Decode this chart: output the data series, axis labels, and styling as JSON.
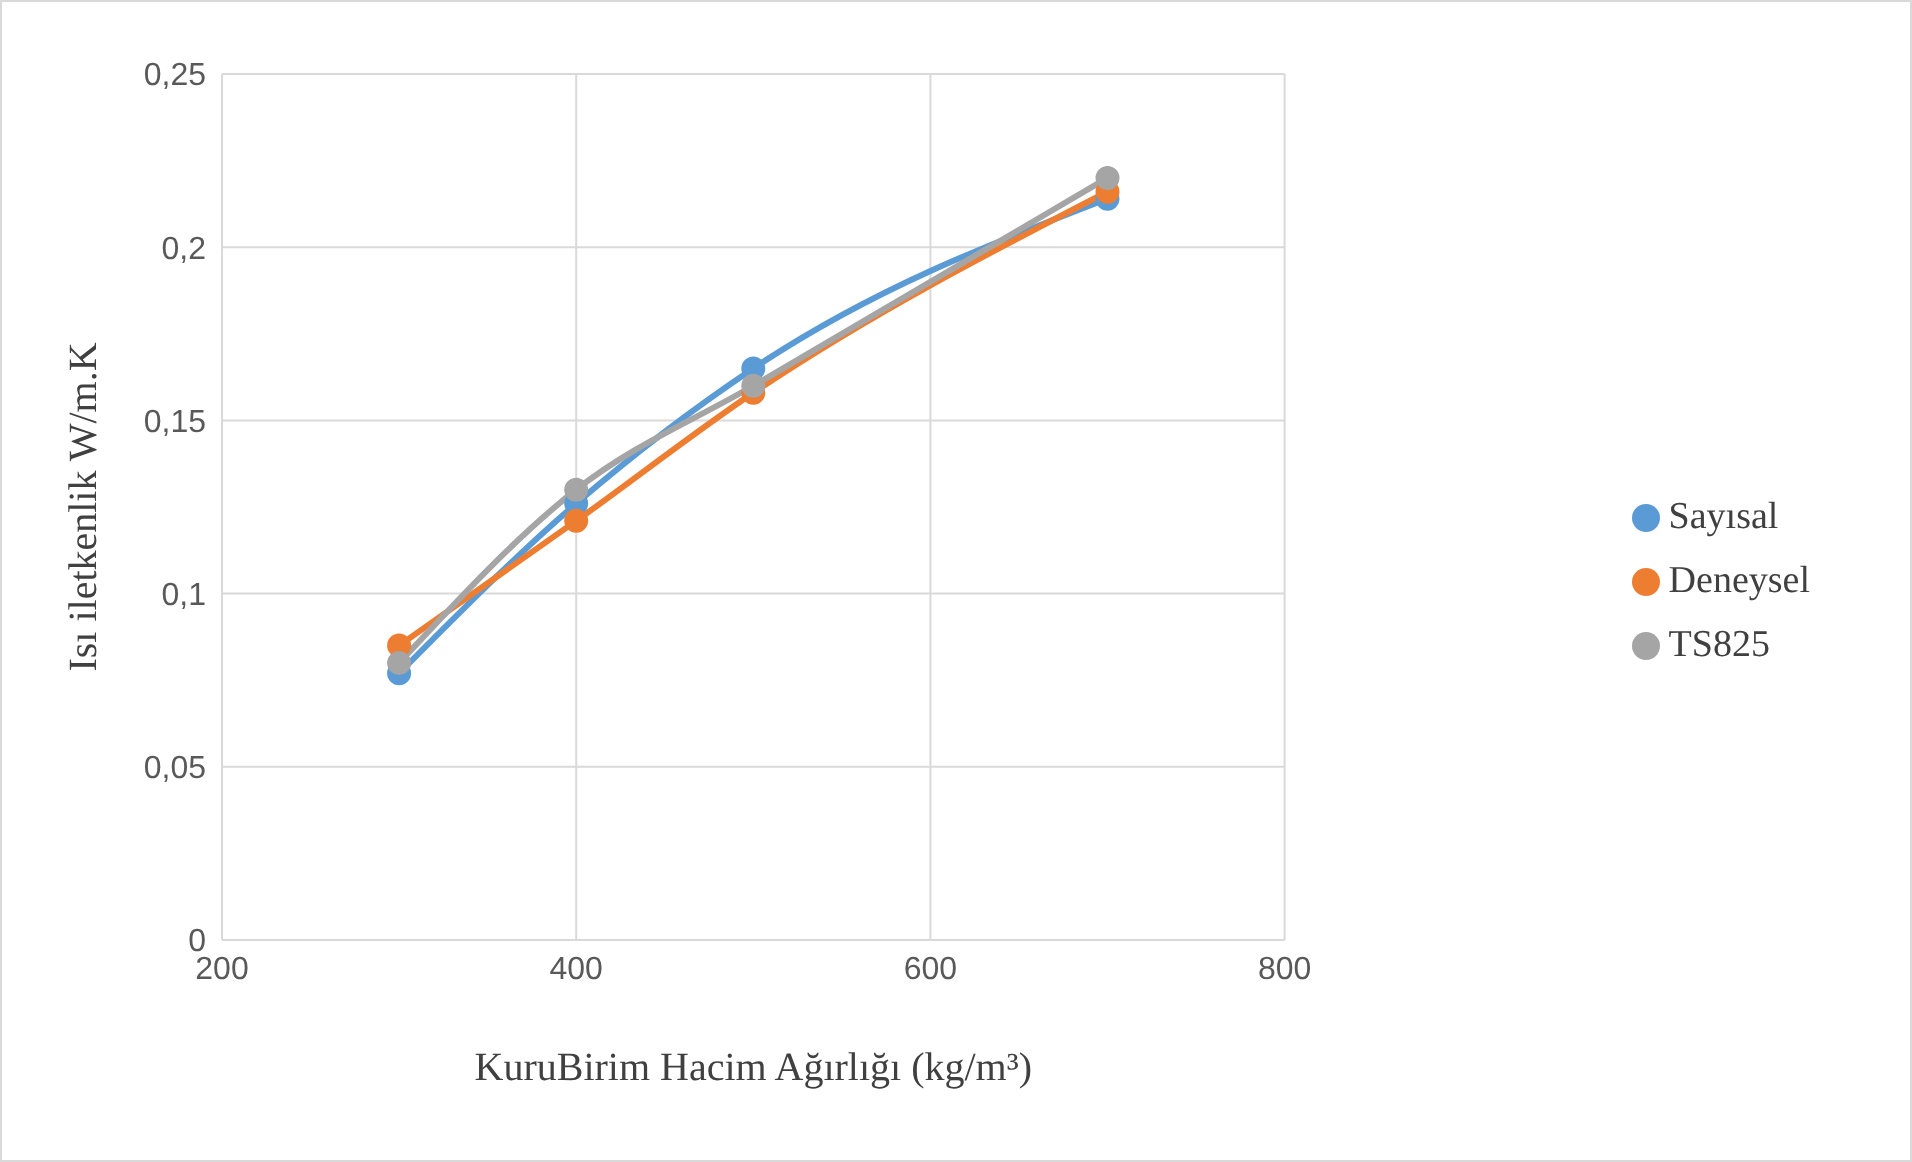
{
  "chart_data": {
    "type": "line",
    "xlabel": "KuruBirim Hacim Ağırlığı (kg/m³)",
    "ylabel": "Isı iletkenlik W/m.K",
    "x": [
      300,
      400,
      500,
      700
    ],
    "series": [
      {
        "name": "Sayısal",
        "color": "#5b9bd5",
        "values": [
          0.077,
          0.126,
          0.165,
          0.214
        ]
      },
      {
        "name": "Deneysel",
        "color": "#ed7d31",
        "values": [
          0.085,
          0.121,
          0.158,
          0.216
        ]
      },
      {
        "name": "TS825",
        "color": "#a5a5a5",
        "values": [
          0.08,
          0.13,
          0.16,
          0.22
        ]
      }
    ],
    "xlim": [
      200,
      800
    ],
    "xticks": [
      200,
      400,
      600,
      800
    ],
    "ylim": [
      0,
      0.25
    ],
    "yticks": [
      0,
      {
        "value": 0.05,
        "label": "0,05"
      },
      {
        "value": 0.1,
        "label": "0,1"
      },
      {
        "value": 0.15,
        "label": "0,15"
      },
      {
        "value": 0.2,
        "label": "0,2"
      },
      {
        "value": 0.25,
        "label": "0,25"
      }
    ],
    "grid": true,
    "legend": "right",
    "marker": "circle",
    "line_style": "solid"
  }
}
